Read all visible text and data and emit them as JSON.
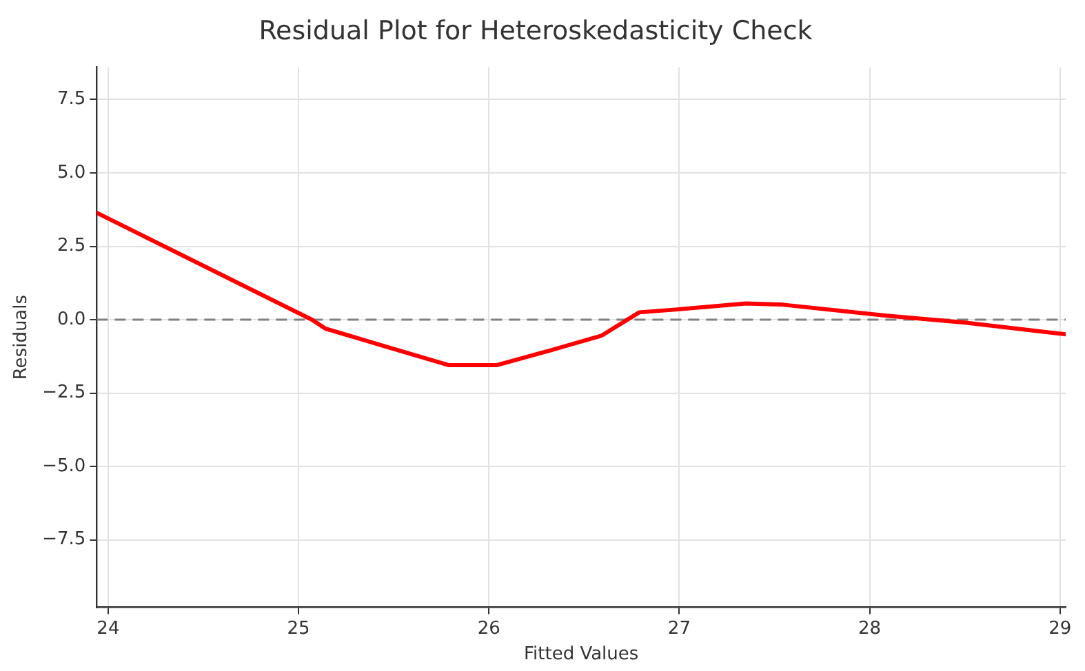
{
  "chart_data": {
    "type": "line",
    "title": "Residual Plot for Heteroskedasticity Check",
    "xlabel": "Fitted Values",
    "ylabel": "Residuals",
    "x": [
      23.94,
      25.07,
      25.14,
      25.45,
      25.79,
      26.04,
      26.32,
      26.59,
      26.79,
      26.99,
      27.35,
      27.53,
      28.07,
      28.5,
      29.03
    ],
    "series": [
      {
        "color": "#ff0000",
        "values": [
          3.64,
          0,
          -0.3,
          -0.9,
          -1.55,
          -1.55,
          -1.05,
          -0.55,
          0.25,
          0.35,
          0.55,
          0.52,
          0.15,
          -0.1,
          -0.5
        ]
      }
    ],
    "xlim": [
      23.94,
      29.03
    ],
    "xticks": [
      24,
      25,
      26,
      27,
      28,
      29
    ],
    "ylim": [
      -9.8,
      8.6
    ],
    "yticks": [
      {
        "value": -7.5,
        "label": "−7.5"
      },
      {
        "value": -5,
        "label": "−5.0"
      },
      {
        "value": -2.5,
        "label": "−2.5"
      },
      {
        "value": 0,
        "label": "0.0"
      },
      {
        "value": 2.5,
        "label": "2.5"
      },
      {
        "value": 5,
        "label": "5.0"
      },
      {
        "value": 7.5,
        "label": "7.5"
      }
    ],
    "ref_lines": [
      {
        "axis": "y",
        "value": 0,
        "color": "#808080",
        "line_style": "dashed"
      }
    ],
    "grid": true,
    "legend": false,
    "marker": "none",
    "line_style": "solid"
  }
}
